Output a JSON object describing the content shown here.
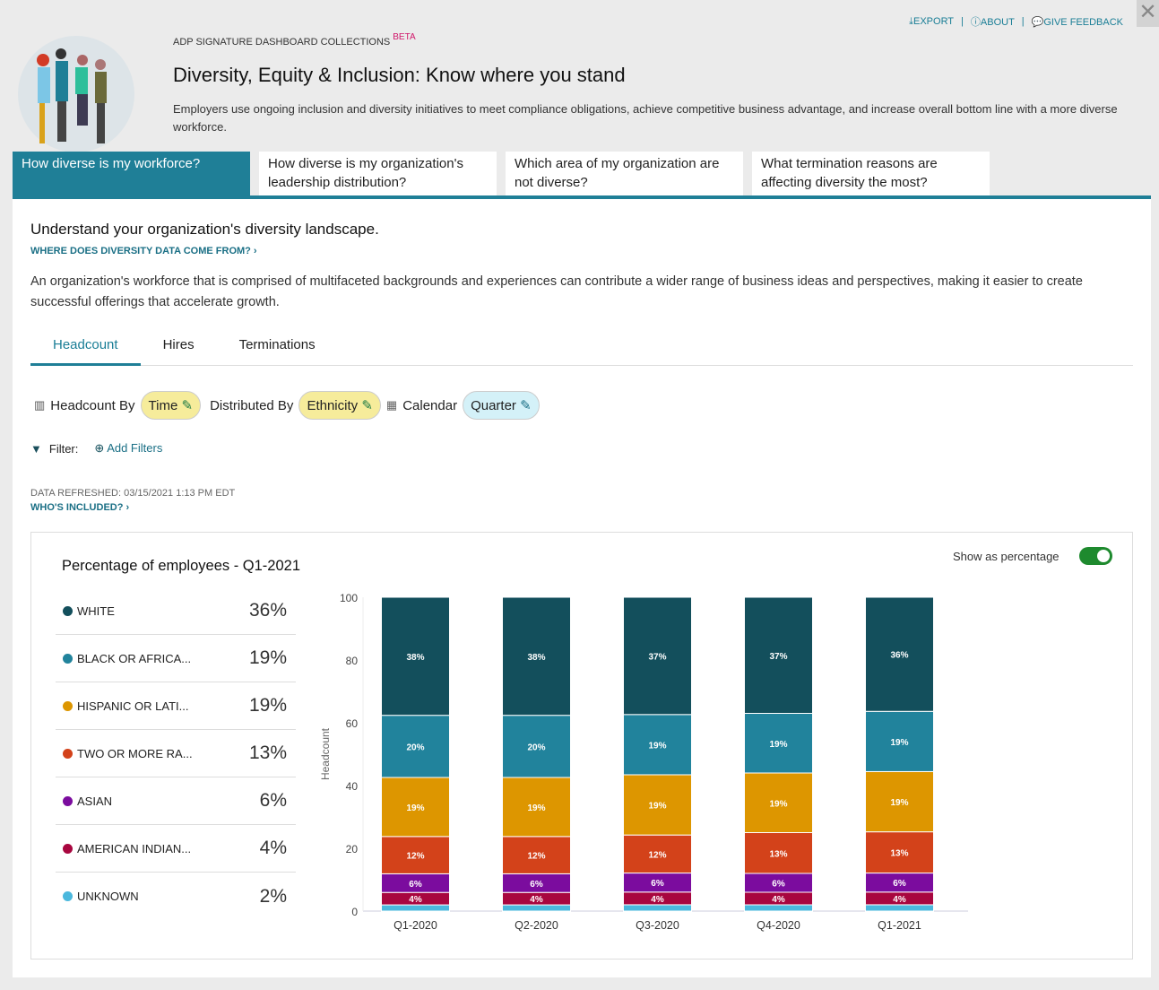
{
  "header": {
    "links": [
      {
        "icon": "download-icon",
        "label": "EXPORT"
      },
      {
        "icon": "info-icon",
        "label": "ABOUT"
      },
      {
        "icon": "comment-icon",
        "label": "GIVE FEEDBACK"
      }
    ],
    "collection": "ADP SIGNATURE DASHBOARD COLLECTIONS",
    "beta": "BETA",
    "title": "Diversity, Equity & Inclusion: Know where you stand",
    "description": "Employers use ongoing inclusion and diversity initiatives to meet compliance obligations, achieve competitive business advantage, and increase overall bottom line with a more diverse workforce."
  },
  "tabs": [
    "How diverse is my workforce?",
    "How diverse is my organization's leadership distribution?",
    "Which area of my organization are not diverse?",
    "What termination reasons are affecting diversity the most?"
  ],
  "main": {
    "heading": "Understand your organization's diversity landscape.",
    "data_source_link": "WHERE DOES DIVERSITY DATA COME FROM? ›",
    "paragraph": "An organization's workforce that is comprised of multifaceted backgrounds and experiences can contribute a wider range of business ideas and perspectives, making it easier to create successful offerings that accelerate growth.",
    "subtabs": [
      "Headcount",
      "Hires",
      "Terminations"
    ],
    "controls": {
      "headcount_by": "Headcount By",
      "time": "Time",
      "distributed_by": "Distributed By",
      "ethnicity": "Ethnicity",
      "calendar": "Calendar",
      "quarter": "Quarter"
    },
    "filter_label": "Filter:",
    "add_filters": "Add Filters",
    "refreshed": "DATA REFRESHED: 03/15/2021 1:13 PM EDT",
    "whos_included": "WHO'S INCLUDED? ›",
    "card_title": "Percentage of employees - Q1-2021",
    "toggle_label": "Show as percentage",
    "toggle_on": true,
    "legend": [
      {
        "name": "WHITE",
        "value": "36%",
        "color": "#134f5c"
      },
      {
        "name": "BLACK OR AFRICA...",
        "value": "19%",
        "color": "#21839c"
      },
      {
        "name": "HISPANIC OR LATI...",
        "value": "19%",
        "color": "#dd9600"
      },
      {
        "name": "TWO OR MORE RA...",
        "value": "13%",
        "color": "#d3421a"
      },
      {
        "name": "ASIAN",
        "value": "6%",
        "color": "#7b0c9e"
      },
      {
        "name": "AMERICAN INDIAN...",
        "value": "4%",
        "color": "#a8063f"
      },
      {
        "name": "UNKNOWN",
        "value": "2%",
        "color": "#4bb8dd"
      }
    ]
  },
  "chart_data": {
    "type": "bar",
    "stacked": true,
    "ylabel": "Headcount",
    "ylim": [
      0,
      100
    ],
    "yticks": [
      0,
      20,
      40,
      60,
      80,
      100
    ],
    "categories": [
      "Q1-2020",
      "Q2-2020",
      "Q3-2020",
      "Q4-2020",
      "Q1-2021"
    ],
    "series": [
      {
        "name": "UNKNOWN",
        "color": "#4bb8dd",
        "values": [
          2,
          2,
          2,
          2,
          2
        ]
      },
      {
        "name": "AMERICAN INDIAN...",
        "color": "#a8063f",
        "values": [
          4,
          4,
          4,
          4,
          4
        ]
      },
      {
        "name": "ASIAN",
        "color": "#7b0c9e",
        "values": [
          6,
          6,
          6,
          6,
          6
        ]
      },
      {
        "name": "TWO OR MORE RA...",
        "color": "#d3421a",
        "values": [
          12,
          12,
          12,
          13,
          13
        ]
      },
      {
        "name": "HISPANIC OR LATI...",
        "color": "#dd9600",
        "values": [
          19,
          19,
          19,
          19,
          19
        ]
      },
      {
        "name": "BLACK OR AFRICA...",
        "color": "#21839c",
        "values": [
          20,
          20,
          19,
          19,
          19
        ]
      },
      {
        "name": "WHITE",
        "color": "#134f5c",
        "values": [
          38,
          38,
          37,
          37,
          36
        ]
      }
    ]
  }
}
